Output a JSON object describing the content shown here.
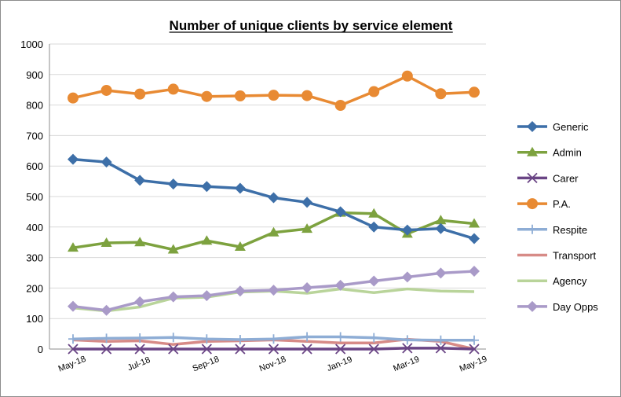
{
  "chart_data": {
    "type": "line",
    "title": "Number of unique clients by service element",
    "xlabel": "",
    "ylabel": "",
    "x": [
      "May-18",
      "Jun-18",
      "Jul-18",
      "Aug-18",
      "Sep-18",
      "Oct-18",
      "Nov-18",
      "Dec-18",
      "Jan-19",
      "Feb-19",
      "Mar-19",
      "Apr-19",
      "May-19"
    ],
    "x_tick_labels": [
      "May-18",
      "",
      "Jul-18",
      "",
      "Sep-18",
      "",
      "Nov-18",
      "",
      "Jan-19",
      "",
      "Mar-19",
      "",
      "May-19"
    ],
    "ylim": [
      0,
      1000
    ],
    "yticks": [
      0,
      100,
      200,
      300,
      400,
      500,
      600,
      700,
      800,
      900,
      1000
    ],
    "grid": true,
    "legend": "right",
    "series": [
      {
        "name": "Generic",
        "color": "#3d6fa8",
        "marker": "diamond",
        "values": [
          622,
          613,
          553,
          541,
          533,
          527,
          496,
          481,
          450,
          400,
          390,
          395,
          362
        ]
      },
      {
        "name": "Admin",
        "color": "#7da23f",
        "marker": "triangle",
        "values": [
          332,
          348,
          350,
          326,
          355,
          335,
          382,
          394,
          447,
          444,
          378,
          422,
          411
        ]
      },
      {
        "name": "Carer",
        "color": "#6a4585",
        "marker": "x",
        "values": [
          0,
          0,
          0,
          0,
          0,
          0,
          0,
          0,
          0,
          0,
          3,
          3,
          0
        ]
      },
      {
        "name": "P.A.",
        "color": "#e88a33",
        "marker": "circle",
        "values": [
          823,
          848,
          836,
          852,
          828,
          830,
          832,
          831,
          799,
          844,
          895,
          837,
          842
        ]
      },
      {
        "name": "Respite",
        "color": "#8eadd5",
        "marker": "plus",
        "values": [
          33,
          35,
          36,
          38,
          33,
          31,
          33,
          40,
          40,
          37,
          30,
          29,
          29
        ]
      },
      {
        "name": "Transport",
        "color": "#d78b87",
        "marker": "none",
        "values": [
          30,
          25,
          27,
          15,
          25,
          27,
          30,
          25,
          20,
          20,
          32,
          25,
          0
        ]
      },
      {
        "name": "Agency",
        "color": "#b9d49a",
        "marker": "none",
        "values": [
          135,
          125,
          138,
          167,
          170,
          187,
          190,
          183,
          197,
          185,
          197,
          190,
          188
        ]
      },
      {
        "name": "Day Opps",
        "color": "#a99ac8",
        "marker": "diamond",
        "values": [
          140,
          127,
          155,
          171,
          175,
          190,
          193,
          201,
          209,
          223,
          236,
          249,
          255
        ]
      }
    ]
  }
}
